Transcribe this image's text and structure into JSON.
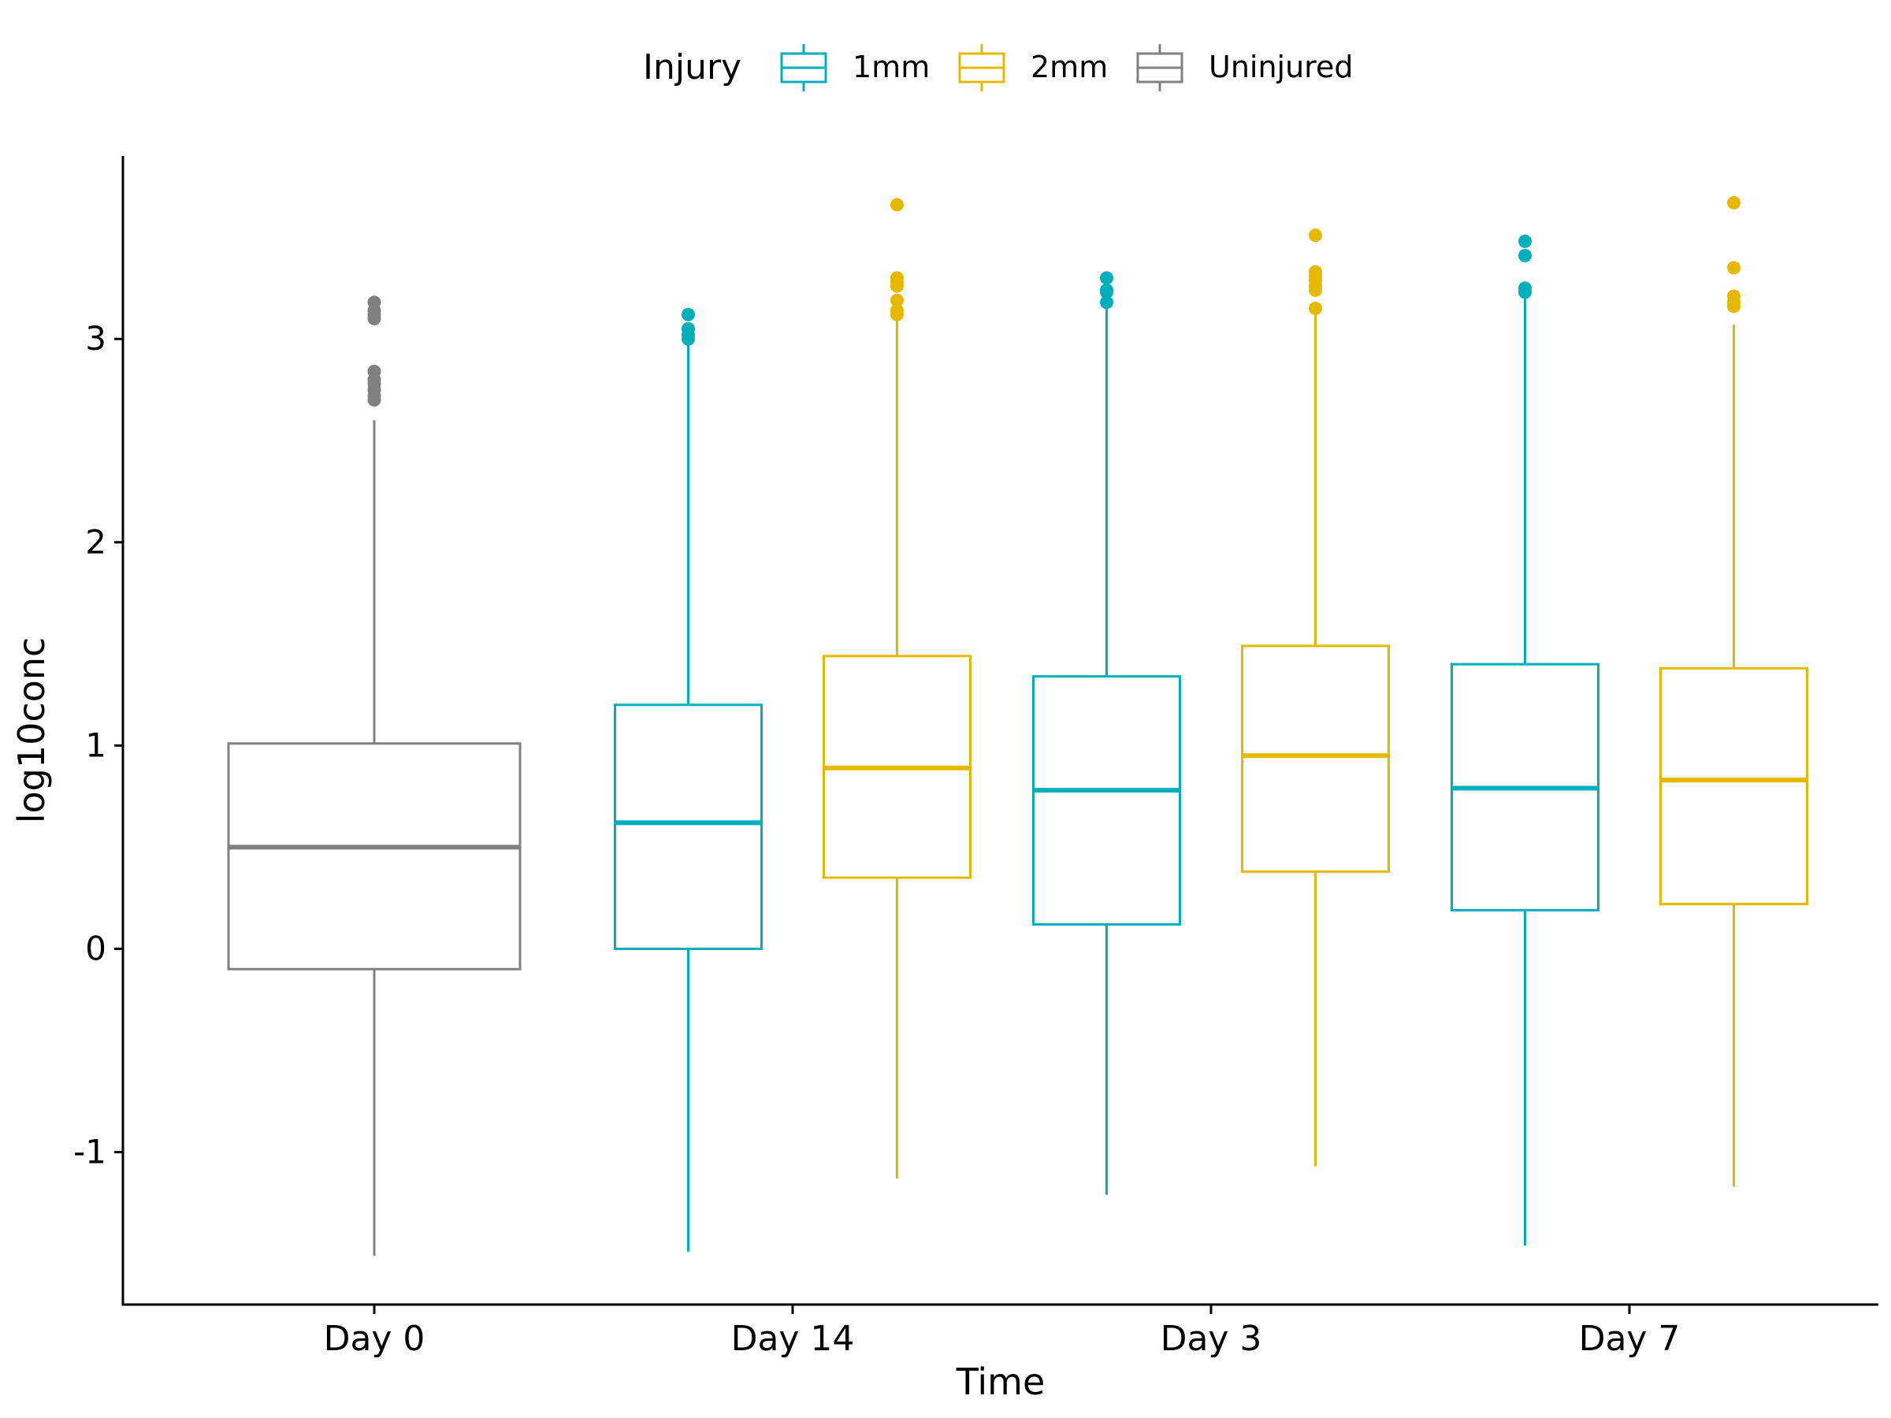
{
  "chart_data": {
    "type": "box",
    "xlabel": "Time",
    "ylabel": "log10conc",
    "categories": [
      "Day 0",
      "Day 14",
      "Day 3",
      "Day 7"
    ],
    "y_ticks": [
      "-1",
      "0",
      "1",
      "2",
      "3"
    ],
    "y_tick_values": [
      -1,
      0,
      1,
      2,
      3
    ],
    "ylim": [
      -1.75,
      3.9
    ],
    "grid": false,
    "legend": {
      "title": "Injury",
      "position": "top",
      "entries": [
        "1mm",
        "2mm",
        "Uninjured"
      ]
    },
    "colors": {
      "1mm": "#00AFBB",
      "2mm": "#E7B800",
      "Uninjured": "#808080"
    },
    "boxes": [
      {
        "category": "Day 0",
        "group": "Uninjured",
        "whisker_low": -1.51,
        "q1": -0.1,
        "median": 0.5,
        "q3": 1.01,
        "whisker_high": 2.6,
        "outliers": [
          2.7,
          2.72,
          2.75,
          2.78,
          2.8,
          2.84,
          3.1,
          3.12,
          3.14,
          3.18
        ]
      },
      {
        "category": "Day 14",
        "group": "1mm",
        "whisker_low": -1.49,
        "q1": 0.0,
        "median": 0.62,
        "q3": 1.2,
        "whisker_high": 2.99,
        "outliers": [
          3.0,
          3.02,
          3.05,
          3.12
        ]
      },
      {
        "category": "Day 14",
        "group": "2mm",
        "whisker_low": -1.13,
        "q1": 0.35,
        "median": 0.89,
        "q3": 1.44,
        "whisker_high": 3.1,
        "outliers": [
          3.12,
          3.14,
          3.19,
          3.26,
          3.28,
          3.3,
          3.66
        ]
      },
      {
        "category": "Day 3",
        "group": "1mm",
        "whisker_low": -1.21,
        "q1": 0.12,
        "median": 0.78,
        "q3": 1.34,
        "whisker_high": 3.15,
        "outliers": [
          3.18,
          3.23,
          3.24,
          3.3
        ]
      },
      {
        "category": "Day 3",
        "group": "2mm",
        "whisker_low": -1.07,
        "q1": 0.38,
        "median": 0.95,
        "q3": 1.49,
        "whisker_high": 3.13,
        "outliers": [
          3.15,
          3.24,
          3.26,
          3.29,
          3.31,
          3.33,
          3.51
        ]
      },
      {
        "category": "Day 7",
        "group": "1mm",
        "whisker_low": -1.46,
        "q1": 0.19,
        "median": 0.79,
        "q3": 1.4,
        "whisker_high": 3.22,
        "outliers": [
          3.23,
          3.25,
          3.41,
          3.48
        ]
      },
      {
        "category": "Day 7",
        "group": "2mm",
        "whisker_low": -1.17,
        "q1": 0.22,
        "median": 0.83,
        "q3": 1.38,
        "whisker_high": 3.07,
        "outliers": [
          3.16,
          3.18,
          3.21,
          3.35,
          3.67
        ]
      }
    ]
  }
}
